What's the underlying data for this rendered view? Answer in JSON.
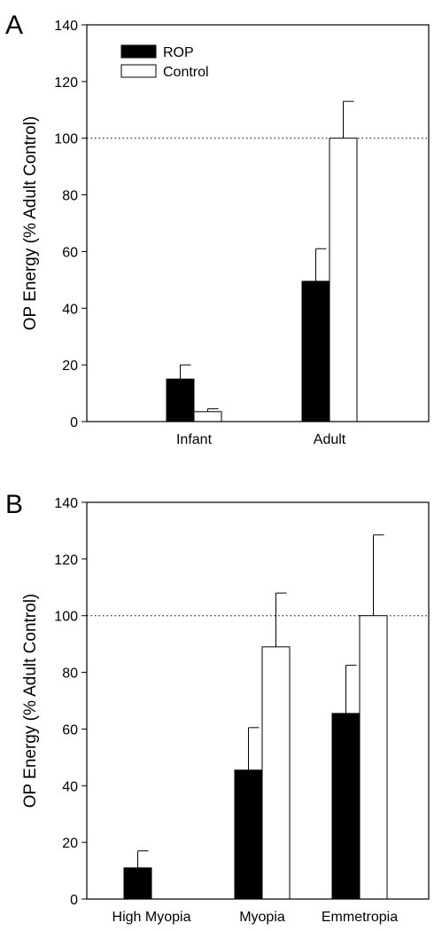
{
  "figure": {
    "reference_line": 100
  },
  "chart_data": [
    {
      "type": "bar",
      "panel_label": "A",
      "categories": [
        "Infant",
        "Adult"
      ],
      "ylabel": "OP Energy (% Adult Control)",
      "ylim": [
        0,
        140
      ],
      "yticks": [
        0,
        20,
        40,
        60,
        80,
        100,
        120,
        140
      ],
      "reference_line": 100,
      "legend": {
        "position": "top-left",
        "entries": [
          "ROP",
          "Control"
        ]
      },
      "series": [
        {
          "name": "ROP",
          "color": "#000000",
          "values": [
            15,
            49.5
          ],
          "errors": [
            5,
            11.5
          ]
        },
        {
          "name": "Control",
          "color": "#ffffff",
          "values": [
            3.5,
            100
          ],
          "errors": [
            1,
            13
          ]
        }
      ]
    },
    {
      "type": "bar",
      "panel_label": "B",
      "categories": [
        "High Myopia",
        "Myopia",
        "Emmetropia"
      ],
      "ylabel": "OP Energy (% Adult Control)",
      "ylim": [
        0,
        140
      ],
      "yticks": [
        0,
        20,
        40,
        60,
        80,
        100,
        120,
        140
      ],
      "reference_line": 100,
      "series": [
        {
          "name": "ROP",
          "color": "#000000",
          "values": [
            11,
            45.5,
            65.5
          ],
          "errors": [
            6,
            15,
            17
          ]
        },
        {
          "name": "Control",
          "color": "#ffffff",
          "values": [
            null,
            89,
            100
          ],
          "errors": [
            null,
            19,
            28.5
          ]
        }
      ]
    }
  ]
}
